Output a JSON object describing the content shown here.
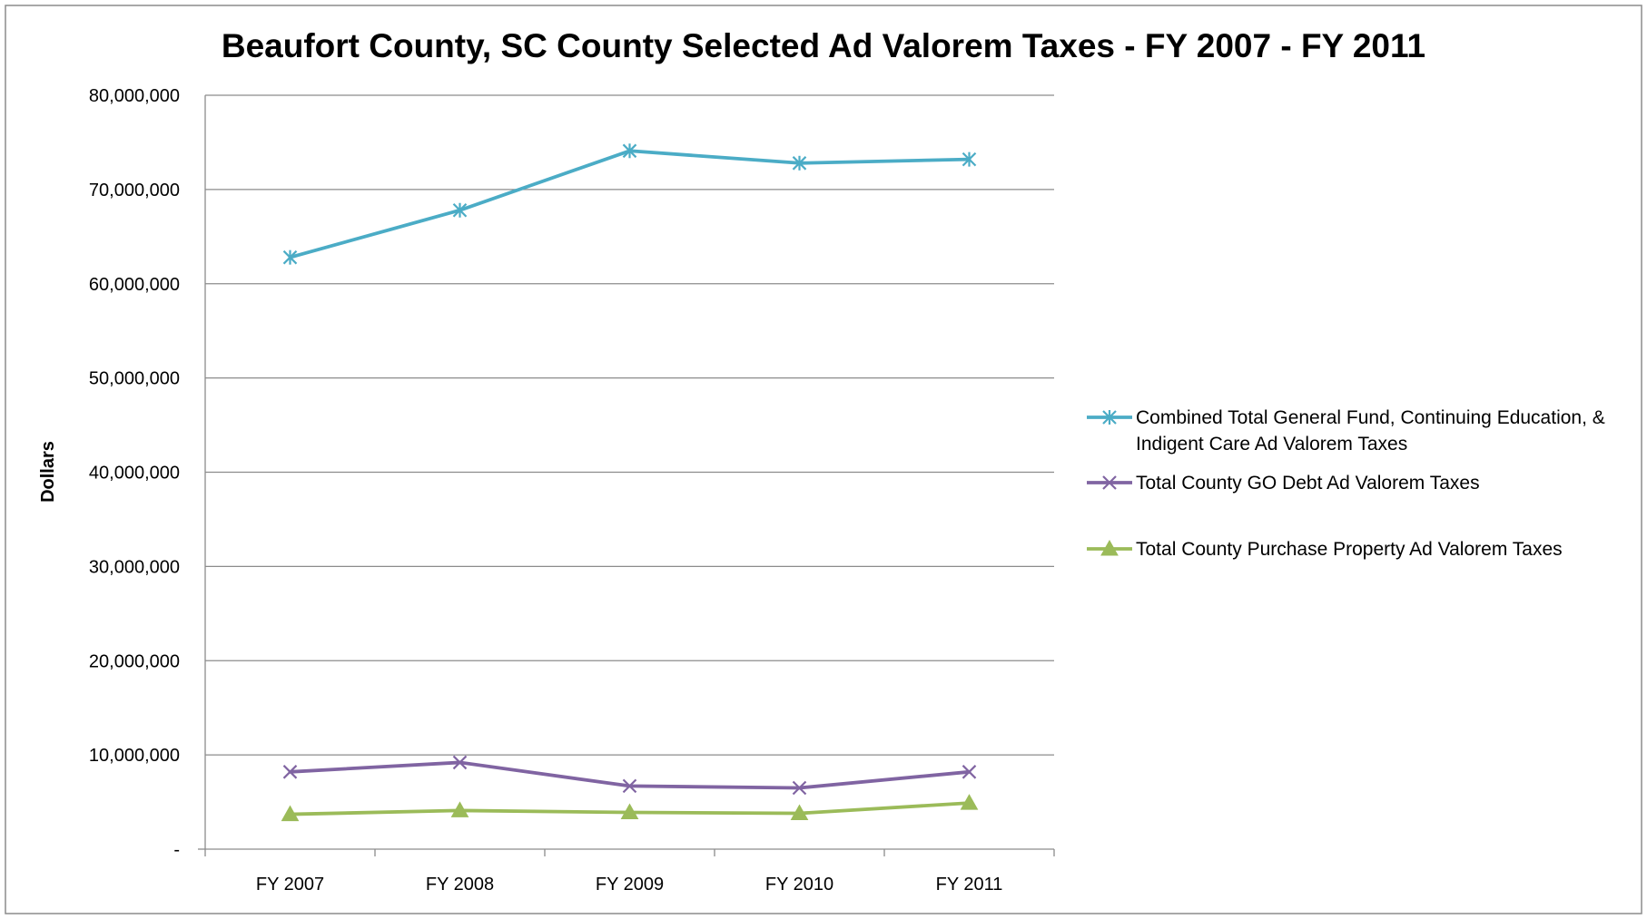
{
  "chart_data": {
    "type": "line",
    "title": "Beaufort County, SC County Selected Ad Valorem Taxes - FY 2007 - FY 2011",
    "xlabel": "",
    "ylabel": "Dollars",
    "categories": [
      "FY 2007",
      "FY 2008",
      "FY 2009",
      "FY 2010",
      "FY 2011"
    ],
    "ylim": [
      0,
      80000000
    ],
    "yticks": [
      0,
      10000000,
      20000000,
      30000000,
      40000000,
      50000000,
      60000000,
      70000000,
      80000000
    ],
    "ytick_labels": [
      "-",
      "10,000,000",
      "20,000,000",
      "30,000,000",
      "40,000,000",
      "50,000,000",
      "60,000,000",
      "70,000,000",
      "80,000,000"
    ],
    "grid": "horizontal",
    "legend_position": "right",
    "series": [
      {
        "name": "Combined Total General Fund, Continuing Education, & Indigent Care Ad Valorem Taxes",
        "legend_lines": [
          "Combined Total General Fund, Continuing Education, &",
          "Indigent Care Ad Valorem Taxes"
        ],
        "color": "#4BACC6",
        "marker": "asterisk",
        "values": [
          62800000,
          67800000,
          74100000,
          72800000,
          73200000
        ]
      },
      {
        "name": "Total County GO Debt Ad Valorem Taxes",
        "legend_lines": [
          "Total County GO Debt Ad Valorem Taxes"
        ],
        "color": "#8064A2",
        "marker": "x",
        "values": [
          8200000,
          9200000,
          6700000,
          6500000,
          8200000
        ]
      },
      {
        "name": "Total County Purchase Property Ad Valorem Taxes",
        "legend_lines": [
          "Total County Purchase Property Ad Valorem Taxes"
        ],
        "color": "#9BBB59",
        "marker": "triangle",
        "values": [
          3700000,
          4100000,
          3900000,
          3800000,
          4900000
        ]
      }
    ]
  }
}
